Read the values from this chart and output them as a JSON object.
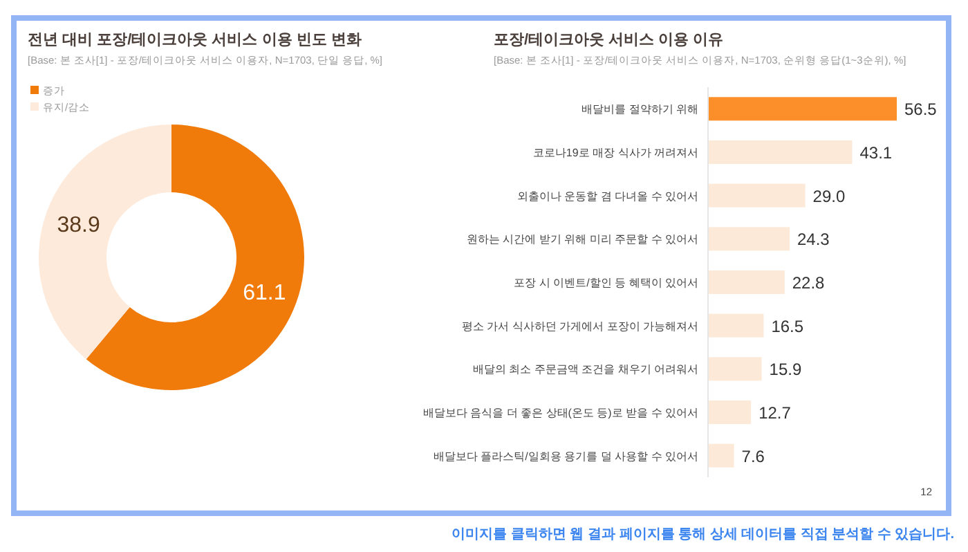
{
  "chart_data": [
    {
      "type": "donut",
      "title": "전년 대비 포장/테이크아웃 서비스 이용 빈도 변화",
      "subtitle": "[Base: 본 조사[1] - 포장/테이크아웃 서비스 이용자, N=1703, 단일 응답, %]",
      "categories": [
        "증가",
        "유지/감소"
      ],
      "values": [
        61.1,
        38.9
      ],
      "colors": [
        "#f07a0a",
        "#fdeadb"
      ],
      "legend": "top left",
      "data_labels": true
    },
    {
      "type": "bar",
      "orientation": "horizontal",
      "title": "포장/테이크아웃 서비스 이용 이유",
      "subtitle": "[Base: 본 조사[1] - 포장/테이크아웃 서비스 이용자, N=1703, 순위형 응답(1~3순위), %]",
      "categories": [
        "배달비를 절약하기 위해",
        "코로나19로 매장 식사가 꺼려져서",
        "외출이나 운동할 겸 다녀올 수 있어서",
        "원하는 시간에 받기 위해 미리 주문할 수 있어서",
        "포장 시 이벤트/할인 등 혜택이 있어서",
        "평소 가서 식사하던 가게에서 포장이 가능해져서",
        "배달의 최소 주문금액 조건을 채우기 어려워서",
        "배달보다 음식을 더 좋은 상태(온도 등)로 받을 수 있어서",
        "배달보다 플라스틱/일회용 용기를 덜 사용할 수 있어서"
      ],
      "values": [
        56.5,
        43.1,
        29.0,
        24.3,
        22.8,
        16.5,
        15.9,
        12.7,
        7.6
      ],
      "value_labels": [
        "56.5",
        "43.1",
        "29.0",
        "24.3",
        "22.8",
        "16.5",
        "15.9",
        "12.7",
        "7.6"
      ],
      "colors": [
        "#fd8f2a",
        "#fde9d7",
        "#fde9d7",
        "#fde9d7",
        "#fde9d7",
        "#fde9d7",
        "#fde9d7",
        "#fde9d7",
        "#fde9d7"
      ],
      "annotations": [
        "12",
        "이미지를 클릭하면 웹 결과 페이지를 통해 상세 데이터를 직접 분석할 수 있습니다."
      ]
    }
  ]
}
